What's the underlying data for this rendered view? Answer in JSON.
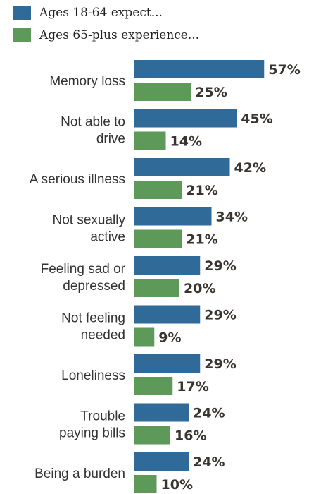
{
  "chart_data": {
    "type": "bar",
    "orientation": "horizontal",
    "legend_position": "top-left",
    "categories": [
      [
        "Memory loss"
      ],
      [
        "Not able to",
        "drive"
      ],
      [
        "A serious illness"
      ],
      [
        "Not sexually",
        "active"
      ],
      [
        "Feeling sad or",
        "depressed"
      ],
      [
        "Not feeling",
        "needed"
      ],
      [
        "Loneliness"
      ],
      [
        "Trouble",
        "paying bills"
      ],
      [
        "Being a burden"
      ]
    ],
    "series": [
      {
        "name": "Ages 18-64 expect...",
        "color": "#2f6a99",
        "values": [
          57,
          45,
          42,
          34,
          29,
          29,
          29,
          24,
          24
        ],
        "labels": [
          "57%",
          "45%",
          "42%",
          "34%",
          "29%",
          "29%",
          "29%",
          "24%",
          "24%"
        ]
      },
      {
        "name": "Ages 65-plus experience...",
        "color": "#5d9a5a",
        "values": [
          25,
          14,
          21,
          21,
          20,
          9,
          17,
          16,
          10
        ],
        "labels": [
          "25%",
          "14%",
          "21%",
          "21%",
          "20%",
          "9%",
          "17%",
          "16%",
          "10%"
        ]
      }
    ]
  }
}
